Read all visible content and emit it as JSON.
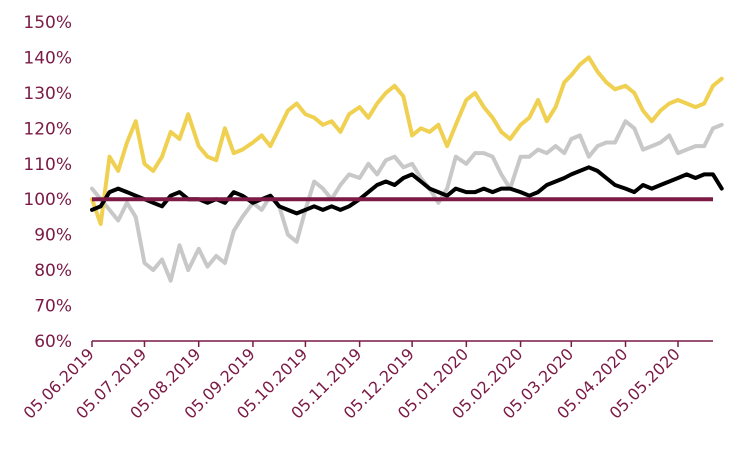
{
  "chart_data": {
    "type": "line",
    "ylim": [
      60,
      150
    ],
    "y_unit": "%",
    "y_ticks": [
      "60%",
      "70%",
      "80%",
      "90%",
      "100%",
      "110%",
      "120%",
      "130%",
      "140%",
      "150%"
    ],
    "x_ticks": [
      "05.06.2019",
      "05.07.2019",
      "05.08.2019",
      "05.09.2019",
      "05.10.2019",
      "05.11.2019",
      "05.12.2019",
      "05.01.2020",
      "05.02.2020",
      "05.03.2020",
      "05.04.2020",
      "05.05.2020"
    ],
    "grid": false,
    "legend": "none",
    "colors": {
      "axis": "#7a1a45",
      "reference": "#7a1a45",
      "black_series": "#000000",
      "gray_series": "#c8c8c8",
      "yellow_series": "#f0d050"
    },
    "reference_line": 100,
    "series": [
      {
        "color": "#c8c8c8",
        "x": [
          "05.06.2019",
          "10.06.2019",
          "15.06.2019",
          "20.06.2019",
          "25.06.2019",
          "30.06.2019",
          "05.07.2019",
          "10.07.2019",
          "15.07.2019",
          "20.07.2019",
          "25.07.2019",
          "30.07.2019",
          "05.08.2019",
          "10.08.2019",
          "15.08.2019",
          "20.08.2019",
          "25.08.2019",
          "30.08.2019",
          "05.09.2019",
          "10.09.2019",
          "15.09.2019",
          "20.09.2019",
          "25.09.2019",
          "30.09.2019",
          "05.10.2019",
          "10.10.2019",
          "15.10.2019",
          "20.10.2019",
          "25.10.2019",
          "30.10.2019",
          "05.11.2019",
          "10.11.2019",
          "15.11.2019",
          "20.11.2019",
          "25.11.2019",
          "30.11.2019",
          "05.12.2019",
          "10.12.2019",
          "15.12.2019",
          "20.12.2019",
          "25.12.2019",
          "30.12.2019",
          "05.01.2020",
          "10.01.2020",
          "15.01.2020",
          "20.01.2020",
          "25.01.2020",
          "30.01.2020",
          "05.02.2020",
          "10.02.2020",
          "15.02.2020",
          "20.02.2020",
          "25.02.2020",
          "01.03.2020",
          "05.03.2020",
          "10.03.2020",
          "15.03.2020",
          "20.03.2020",
          "25.03.2020",
          "30.03.2020",
          "05.04.2020",
          "10.04.2020",
          "15.04.2020",
          "20.04.2020",
          "25.04.2020",
          "30.04.2020",
          "05.05.2020",
          "10.05.2020",
          "15.05.2020",
          "20.05.2020",
          "25.05.2020",
          "30.05.2020"
        ],
        "values": [
          103,
          100,
          97,
          94,
          99,
          95,
          82,
          80,
          83,
          77,
          87,
          80,
          86,
          81,
          84,
          82,
          91,
          95,
          99,
          97,
          101,
          98,
          90,
          88,
          97,
          105,
          103,
          100,
          104,
          107,
          106,
          110,
          107,
          111,
          112,
          109,
          110,
          106,
          103,
          99,
          103,
          112,
          110,
          113,
          113,
          112,
          107,
          103,
          112,
          112,
          114,
          113,
          115,
          113,
          117,
          118,
          112,
          115,
          116,
          116,
          122,
          120,
          114,
          115,
          116,
          118,
          113,
          114,
          115,
          115,
          120,
          121
        ]
      },
      {
        "color": "#f0d050",
        "x": [
          "05.06.2019",
          "10.06.2019",
          "15.06.2019",
          "20.06.2019",
          "25.06.2019",
          "30.06.2019",
          "05.07.2019",
          "10.07.2019",
          "15.07.2019",
          "20.07.2019",
          "25.07.2019",
          "30.07.2019",
          "05.08.2019",
          "10.08.2019",
          "15.08.2019",
          "20.08.2019",
          "25.08.2019",
          "30.08.2019",
          "05.09.2019",
          "10.09.2019",
          "15.09.2019",
          "20.09.2019",
          "25.09.2019",
          "30.09.2019",
          "05.10.2019",
          "10.10.2019",
          "15.10.2019",
          "20.10.2019",
          "25.10.2019",
          "30.10.2019",
          "05.11.2019",
          "10.11.2019",
          "15.11.2019",
          "20.11.2019",
          "25.11.2019",
          "30.11.2019",
          "05.12.2019",
          "10.12.2019",
          "15.12.2019",
          "20.12.2019",
          "25.12.2019",
          "30.12.2019",
          "05.01.2020",
          "10.01.2020",
          "15.01.2020",
          "20.01.2020",
          "25.01.2020",
          "30.01.2020",
          "05.02.2020",
          "10.02.2020",
          "15.02.2020",
          "20.02.2020",
          "25.02.2020",
          "01.03.2020",
          "05.03.2020",
          "10.03.2020",
          "15.03.2020",
          "20.03.2020",
          "25.03.2020",
          "30.03.2020",
          "05.04.2020",
          "10.04.2020",
          "15.04.2020",
          "20.04.2020",
          "25.04.2020",
          "30.04.2020",
          "05.05.2020",
          "10.05.2020",
          "15.05.2020",
          "20.05.2020",
          "25.05.2020",
          "30.05.2020"
        ],
        "values": [
          100,
          93,
          112,
          108,
          116,
          122,
          110,
          108,
          112,
          119,
          117,
          124,
          115,
          112,
          111,
          120,
          113,
          114,
          116,
          118,
          115,
          120,
          125,
          127,
          124,
          123,
          121,
          122,
          119,
          124,
          126,
          123,
          127,
          130,
          132,
          129,
          118,
          120,
          119,
          121,
          115,
          121,
          128,
          130,
          126,
          123,
          119,
          117,
          121,
          123,
          128,
          122,
          126,
          133,
          135,
          138,
          140,
          136,
          133,
          131,
          132,
          130,
          125,
          122,
          125,
          127,
          128,
          127,
          126,
          127,
          132,
          134
        ]
      },
      {
        "color": "#000000",
        "x": [
          "05.06.2019",
          "10.06.2019",
          "15.06.2019",
          "20.06.2019",
          "25.06.2019",
          "30.06.2019",
          "05.07.2019",
          "10.07.2019",
          "15.07.2019",
          "20.07.2019",
          "25.07.2019",
          "30.07.2019",
          "05.08.2019",
          "10.08.2019",
          "15.08.2019",
          "20.08.2019",
          "25.08.2019",
          "30.08.2019",
          "05.09.2019",
          "10.09.2019",
          "15.09.2019",
          "20.09.2019",
          "25.09.2019",
          "30.09.2019",
          "05.10.2019",
          "10.10.2019",
          "15.10.2019",
          "20.10.2019",
          "25.10.2019",
          "30.10.2019",
          "05.11.2019",
          "10.11.2019",
          "15.11.2019",
          "20.11.2019",
          "25.11.2019",
          "30.11.2019",
          "05.12.2019",
          "10.12.2019",
          "15.12.2019",
          "20.12.2019",
          "25.12.2019",
          "30.12.2019",
          "05.01.2020",
          "10.01.2020",
          "15.01.2020",
          "20.01.2020",
          "25.01.2020",
          "30.01.2020",
          "05.02.2020",
          "10.02.2020",
          "15.02.2020",
          "20.02.2020",
          "25.02.2020",
          "01.03.2020",
          "05.03.2020",
          "10.03.2020",
          "15.03.2020",
          "20.03.2020",
          "25.03.2020",
          "30.03.2020",
          "05.04.2020",
          "10.04.2020",
          "15.04.2020",
          "20.04.2020",
          "25.04.2020",
          "30.04.2020",
          "05.05.2020",
          "10.05.2020",
          "15.05.2020",
          "20.05.2020",
          "25.05.2020",
          "30.05.2020"
        ],
        "values": [
          97,
          98,
          102,
          103,
          102,
          101,
          100,
          99,
          98,
          101,
          102,
          100,
          100,
          99,
          100,
          99,
          102,
          101,
          99,
          100,
          101,
          98,
          97,
          96,
          97,
          98,
          97,
          98,
          97,
          98,
          100,
          102,
          104,
          105,
          104,
          106,
          107,
          105,
          103,
          102,
          101,
          103,
          102,
          102,
          103,
          102,
          103,
          103,
          102,
          101,
          102,
          104,
          105,
          106,
          107,
          108,
          109,
          108,
          106,
          104,
          103,
          102,
          104,
          103,
          104,
          105,
          106,
          107,
          106,
          107,
          107,
          103
        ]
      }
    ]
  }
}
